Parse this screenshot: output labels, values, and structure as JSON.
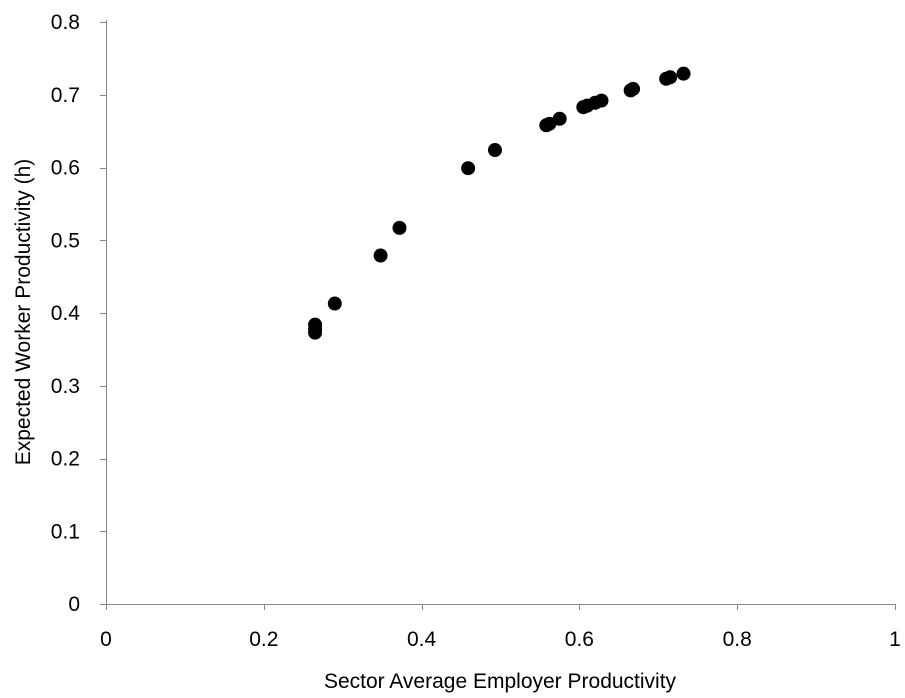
{
  "chart_data": {
    "type": "scatter",
    "title": "",
    "xlabel": "Sector Average Employer Productivity",
    "ylabel": "Expected Worker Productivity (h)",
    "xlim": [
      0,
      1
    ],
    "ylim": [
      0,
      0.8
    ],
    "x_ticks": [
      0,
      0.2,
      0.4,
      0.6,
      0.8,
      1
    ],
    "x_tick_labels": [
      "0",
      "0.2",
      "0.4",
      "0.6",
      "0.8",
      "1"
    ],
    "y_ticks": [
      0,
      0.1,
      0.2,
      0.3,
      0.4,
      0.5,
      0.6,
      0.7,
      0.8
    ],
    "y_tick_labels": [
      "0",
      "0.1",
      "0.2",
      "0.3",
      "0.4",
      "0.5",
      "0.6",
      "0.7",
      "0.8"
    ],
    "grid": false,
    "legend": "none",
    "marker_color": "#000000",
    "series": [
      {
        "points": [
          {
            "x": 0.265,
            "y": 0.373
          },
          {
            "x": 0.265,
            "y": 0.378
          },
          {
            "x": 0.265,
            "y": 0.384
          },
          {
            "x": 0.29,
            "y": 0.413
          },
          {
            "x": 0.348,
            "y": 0.479
          },
          {
            "x": 0.372,
            "y": 0.517
          },
          {
            "x": 0.459,
            "y": 0.599
          },
          {
            "x": 0.493,
            "y": 0.624
          },
          {
            "x": 0.558,
            "y": 0.658
          },
          {
            "x": 0.562,
            "y": 0.66
          },
          {
            "x": 0.575,
            "y": 0.667
          },
          {
            "x": 0.605,
            "y": 0.683
          },
          {
            "x": 0.61,
            "y": 0.685
          },
          {
            "x": 0.62,
            "y": 0.689
          },
          {
            "x": 0.628,
            "y": 0.692
          },
          {
            "x": 0.665,
            "y": 0.706
          },
          {
            "x": 0.668,
            "y": 0.708
          },
          {
            "x": 0.71,
            "y": 0.722
          },
          {
            "x": 0.715,
            "y": 0.724
          },
          {
            "x": 0.732,
            "y": 0.729
          }
        ]
      }
    ]
  }
}
